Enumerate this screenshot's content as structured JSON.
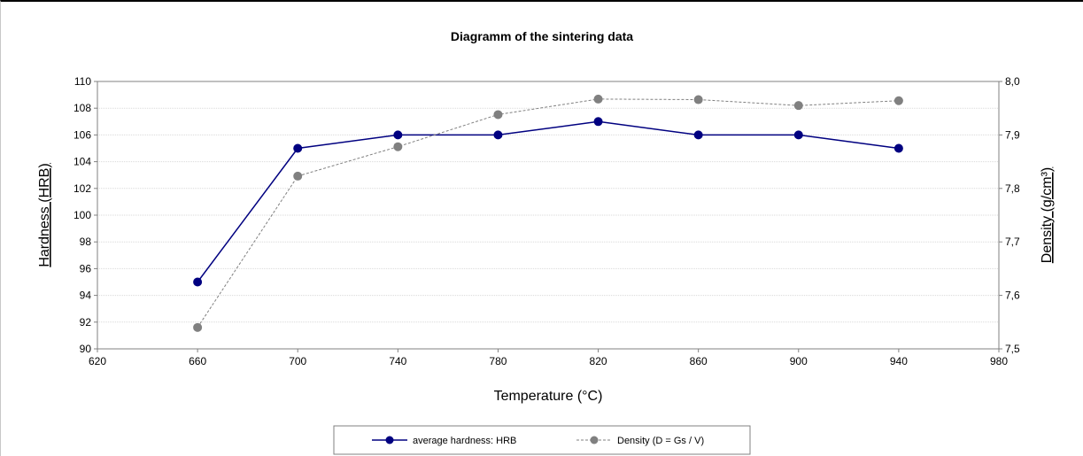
{
  "chart_data": {
    "type": "line",
    "title": "Diagramm of the sintering data",
    "xlabel": "Temperature (°C)",
    "ylabel": "Hardness (HRB)",
    "y2label": "Density (g/cm³)",
    "xlim": [
      620,
      980
    ],
    "ylim": [
      90,
      110
    ],
    "y2lim": [
      7.5,
      8.0
    ],
    "x_ticks": [
      "620",
      "660",
      "700",
      "740",
      "780",
      "820",
      "860",
      "900",
      "940",
      "980"
    ],
    "y_ticks": [
      "90",
      "92",
      "94",
      "96",
      "98",
      "100",
      "102",
      "104",
      "106",
      "108",
      "110"
    ],
    "y2_ticks": [
      "7,5",
      "7,6",
      "7,7",
      "7,8",
      "7,9",
      "8,0"
    ],
    "grid": "horizontal",
    "legend": "bottom",
    "series": [
      {
        "name": "average hardness: HRB",
        "axis": "left",
        "color": "#000080",
        "line_style": "solid",
        "x": [
          660,
          700,
          740,
          780,
          820,
          860,
          900,
          940
        ],
        "values": [
          95,
          105,
          106,
          106,
          107,
          106,
          106,
          105
        ]
      },
      {
        "name": "Density (D = Gs / V)",
        "axis": "right",
        "color": "#808080",
        "line_style": "dashed",
        "x": [
          660,
          700,
          740,
          780,
          820,
          860,
          900,
          940
        ],
        "values": [
          7.54,
          7.823,
          7.878,
          7.938,
          7.967,
          7.966,
          7.955,
          7.964
        ]
      }
    ]
  }
}
